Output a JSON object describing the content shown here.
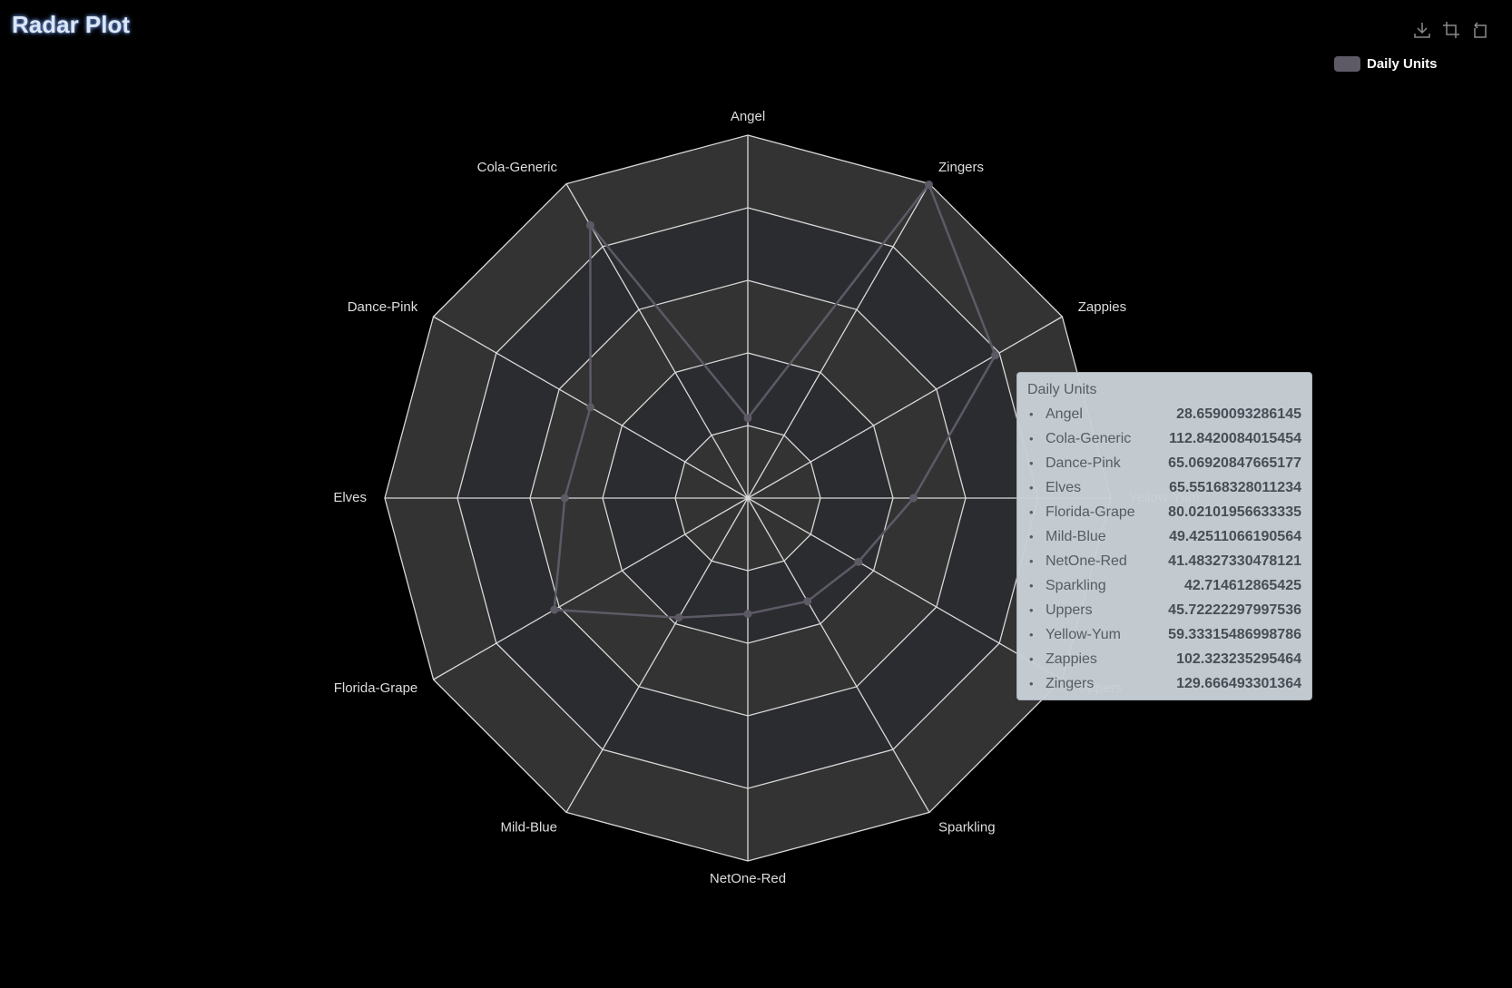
{
  "title": "Radar Plot",
  "toolbox": {
    "icons": [
      "download-icon",
      "crop-icon",
      "restore-icon"
    ]
  },
  "legend": {
    "label": "Daily Units",
    "color": "#5d5a66"
  },
  "tooltip": {
    "title": "Daily Units",
    "rows": [
      {
        "name": "Angel",
        "value": "28.6590093286145"
      },
      {
        "name": "Cola-Generic",
        "value": "112.8420084015454"
      },
      {
        "name": "Dance-Pink",
        "value": "65.06920847665177"
      },
      {
        "name": "Elves",
        "value": "65.55168328011234"
      },
      {
        "name": "Florida-Grape",
        "value": "80.02101956633335"
      },
      {
        "name": "Mild-Blue",
        "value": "49.42511066190564"
      },
      {
        "name": "NetOne-Red",
        "value": "41.48327330478121"
      },
      {
        "name": "Sparkling",
        "value": "42.714612865425"
      },
      {
        "name": "Uppers",
        "value": "45.72222297997536"
      },
      {
        "name": "Yellow-Yum",
        "value": "59.33315486998786"
      },
      {
        "name": "Zappies",
        "value": "102.323235295464"
      },
      {
        "name": "Zingers",
        "value": "129.666493301364"
      }
    ]
  },
  "chart_data": {
    "type": "radar",
    "title": "Radar Plot",
    "indicators": [
      "Angel",
      "Zingers",
      "Zappies",
      "Yellow-Yum",
      "Uppers",
      "Sparkling",
      "NetOne-Red",
      "Mild-Blue",
      "Florida-Grape",
      "Elves",
      "Dance-Pink",
      "Cola-Generic"
    ],
    "max": 130,
    "split_number": 5,
    "series": [
      {
        "name": "Daily Units",
        "values": [
          28.6590093286145,
          129.666493301364,
          102.323235295464,
          59.33315486998786,
          45.72222297997536,
          42.714612865425,
          41.48327330478121,
          49.42511066190564,
          80.02101956633335,
          65.55168328011234,
          65.06920847665177,
          112.8420084015454
        ]
      }
    ],
    "legend_position": "top-right",
    "colors": {
      "series": "#5d5a66",
      "band_light": "#333333",
      "band_dark": "#2b2c30",
      "grid": "#d8d8d8"
    }
  }
}
